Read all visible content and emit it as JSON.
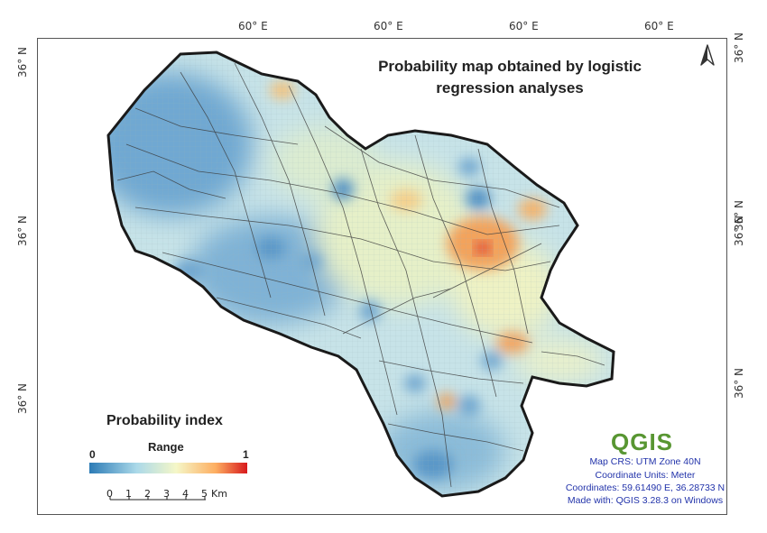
{
  "map": {
    "title": "Probability map obtained by logistic regression analyses",
    "lon_labels": [
      "60° E",
      "60° E",
      "60° E",
      "60° E"
    ],
    "lat_labels_left": [
      "36° N",
      "36° N",
      "36° N"
    ],
    "lat_labels_right": [
      "36° N",
      "36° N",
      "36° N",
      "36° N"
    ],
    "north_arrow": "north-arrow-icon",
    "legend": {
      "title": "Probability index",
      "subtitle": "Range",
      "min_label": "0",
      "max_label": "1",
      "colors": [
        "#2c7bb6",
        "#abd9e9",
        "#f5f7c8",
        "#fdae61",
        "#d7191c"
      ]
    },
    "scale": {
      "ticks": [
        "0",
        "1",
        "2",
        "3",
        "4",
        "5"
      ],
      "unit": "Km"
    },
    "info": {
      "logo": "QGIS",
      "crs": "Map CRS: UTM Zone 40N",
      "units": "Coordinate Units: Meter",
      "coordinates": "Coordinates: 59.61490 E, 36.28733 N",
      "made_with": "Made with: QGIS 3.28.3 on Windows"
    }
  }
}
